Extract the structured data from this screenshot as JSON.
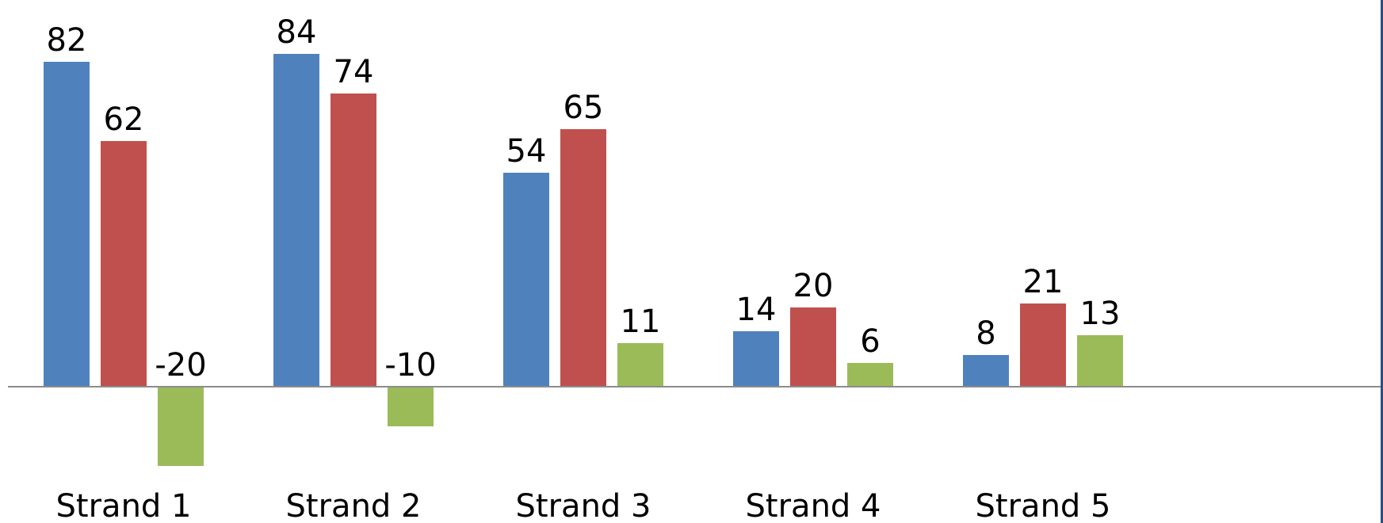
{
  "chart_data": {
    "type": "bar",
    "categories": [
      "Strand 1",
      "Strand 2",
      "Strand 3",
      "Strand 4",
      "Strand 5"
    ],
    "series": [
      {
        "values": [
          82,
          84,
          54,
          14,
          8
        ],
        "color": "#4f81bd"
      },
      {
        "values": [
          62,
          74,
          65,
          20,
          21
        ],
        "color": "#c0504d"
      },
      {
        "values": [
          -20,
          -10,
          11,
          6,
          13
        ],
        "color": "#9bbb59"
      }
    ],
    "data_labels": true,
    "legend": "none",
    "grid": false,
    "title": "",
    "xlabel": "",
    "ylabel": "",
    "ylim": [
      -25,
      95
    ]
  }
}
